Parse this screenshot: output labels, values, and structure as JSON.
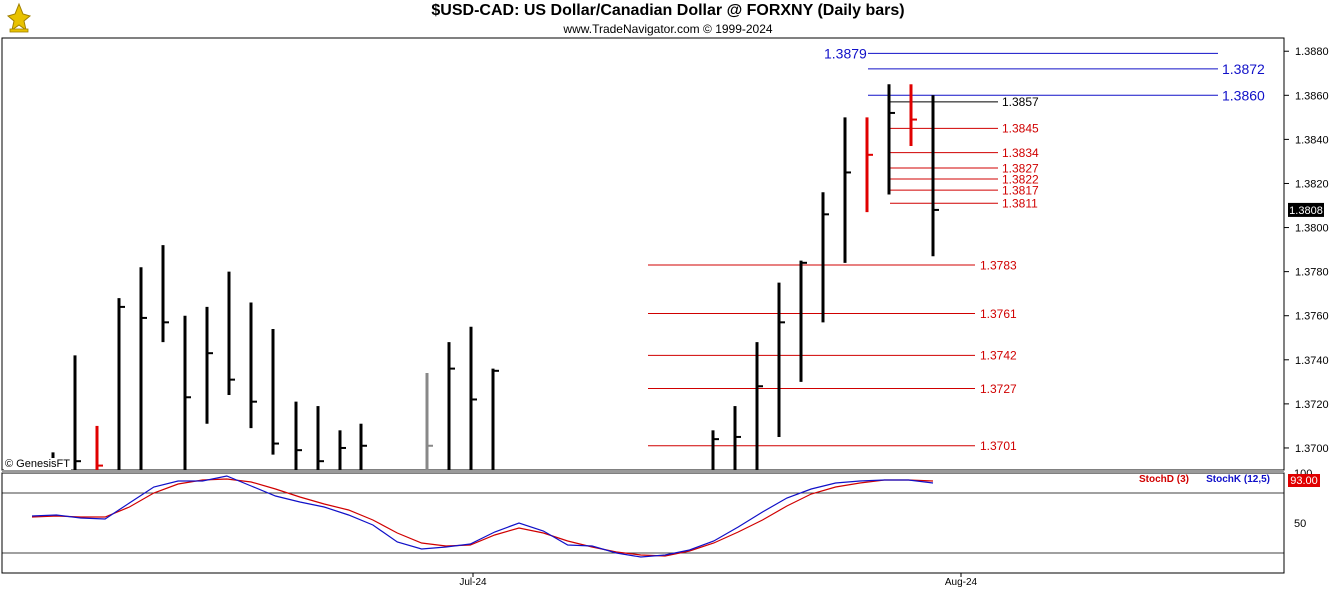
{
  "header": {
    "title": "$USD-CAD:  US Dollar/Canadian Dollar @ FORXNY  (Daily bars)",
    "subtitle": "www.TradeNavigator.com © 1999-2024"
  },
  "copyright": "© GenesisFT",
  "colors": {
    "bar": "#000000",
    "bar_highlight": "#e00000",
    "bar_gray": "#888888",
    "resistance": "#1010c8",
    "support": "#d00000",
    "stoch_d": "#d00000",
    "stoch_k": "#1010c8",
    "last_price_bg": "#000000",
    "stoch_value_bg": "#e00000"
  },
  "chart_data": [
    {
      "type": "ohlc",
      "name": "price",
      "ylim": [
        1.369,
        1.3886
      ],
      "y_ticks": [
        "1.3880",
        "1.3860",
        "1.3840",
        "1.3820",
        "1.3800",
        "1.3780",
        "1.3760",
        "1.3740",
        "1.3720",
        "1.3700"
      ],
      "x_ticks": [
        "Jul-24",
        "Aug-24"
      ],
      "last_price": "1.3808",
      "bars": [
        {
          "h": 1.3698,
          "l": 1.369,
          "c": 1.3694
        },
        {
          "h": 1.3742,
          "l": 1.369,
          "c": 1.3694
        },
        {
          "h": 1.371,
          "l": 1.369,
          "c": 1.3692,
          "color": "red"
        },
        {
          "h": 1.3768,
          "l": 1.369,
          "c": 1.3764
        },
        {
          "h": 1.3782,
          "l": 1.369,
          "c": 1.3759
        },
        {
          "h": 1.3792,
          "l": 1.3748,
          "c": 1.3757
        },
        {
          "h": 1.376,
          "l": 1.369,
          "c": 1.3723
        },
        {
          "h": 1.3764,
          "l": 1.3711,
          "c": 1.3743
        },
        {
          "h": 1.378,
          "l": 1.3724,
          "c": 1.3731
        },
        {
          "h": 1.3766,
          "l": 1.3709,
          "c": 1.3721
        },
        {
          "h": 1.3754,
          "l": 1.3697,
          "c": 1.3702
        },
        {
          "h": 1.3721,
          "l": 1.369,
          "c": 1.3699
        },
        {
          "h": 1.3719,
          "l": 1.369,
          "c": 1.3694
        },
        {
          "h": 1.3708,
          "l": 1.369,
          "c": 1.37
        },
        {
          "h": 1.3711,
          "l": 1.369,
          "c": 1.3701
        },
        {
          "h": 1.3734,
          "l": 1.369,
          "c": 1.3701,
          "color": "gray"
        },
        {
          "h": 1.3748,
          "l": 1.369,
          "c": 1.3736
        },
        {
          "h": 1.3755,
          "l": 1.369,
          "c": 1.3722
        },
        {
          "h": 1.3736,
          "l": 1.369,
          "c": 1.3735
        },
        {
          "h": 1.3708,
          "l": 1.369,
          "c": 1.3704
        },
        {
          "h": 1.3719,
          "l": 1.369,
          "c": 1.3705
        },
        {
          "h": 1.3748,
          "l": 1.369,
          "c": 1.3728
        },
        {
          "h": 1.3775,
          "l": 1.3705,
          "c": 1.3757
        },
        {
          "h": 1.3785,
          "l": 1.373,
          "c": 1.3784
        },
        {
          "h": 1.3816,
          "l": 1.3757,
          "c": 1.3806
        },
        {
          "h": 1.385,
          "l": 1.3784,
          "c": 1.3825
        },
        {
          "h": 1.385,
          "l": 1.3807,
          "c": 1.3833,
          "color": "red"
        },
        {
          "h": 1.3865,
          "l": 1.3815,
          "c": 1.3852
        },
        {
          "h": 1.3865,
          "l": 1.3837,
          "c": 1.3849,
          "color": "red"
        },
        {
          "h": 1.386,
          "l": 1.3787,
          "c": 1.3808
        }
      ],
      "levels": [
        {
          "value": 1.3879,
          "label": "1.3879",
          "kind": "resistance"
        },
        {
          "value": 1.3872,
          "label": "1.3872",
          "kind": "resistance"
        },
        {
          "value": 1.386,
          "label": "1.3860",
          "kind": "resistance"
        },
        {
          "value": 1.3857,
          "label": "1.3857",
          "kind": "pivot"
        },
        {
          "value": 1.3845,
          "label": "1.3845",
          "kind": "support"
        },
        {
          "value": 1.3834,
          "label": "1.3834",
          "kind": "support"
        },
        {
          "value": 1.3827,
          "label": "1.3827",
          "kind": "support"
        },
        {
          "value": 1.3822,
          "label": "1.3822",
          "kind": "support"
        },
        {
          "value": 1.3817,
          "label": "1.3817",
          "kind": "support"
        },
        {
          "value": 1.3811,
          "label": "1.3811",
          "kind": "support"
        },
        {
          "value": 1.3783,
          "label": "1.3783",
          "kind": "support"
        },
        {
          "value": 1.3761,
          "label": "1.3761",
          "kind": "support"
        },
        {
          "value": 1.3742,
          "label": "1.3742",
          "kind": "support"
        },
        {
          "value": 1.3727,
          "label": "1.3727",
          "kind": "support"
        },
        {
          "value": 1.3701,
          "label": "1.3701",
          "kind": "support"
        }
      ]
    },
    {
      "type": "line",
      "name": "stochastic",
      "ylim": [
        0,
        100
      ],
      "y_ticks": [
        "100",
        "50"
      ],
      "reference_lines": [
        80,
        20
      ],
      "current_value": "93.00",
      "legend": [
        "StochD (3)",
        "StochK (12,5)"
      ],
      "series": [
        {
          "name": "StochD (3)",
          "color": "red",
          "values": [
            56,
            57,
            56,
            56,
            66,
            80,
            89,
            93,
            94,
            91,
            84,
            76,
            69,
            63,
            53,
            40,
            30,
            27,
            28,
            38,
            45,
            40,
            32,
            26,
            21,
            18,
            17,
            22,
            30,
            41,
            53,
            67,
            79,
            86,
            90,
            93,
            93,
            92
          ]
        },
        {
          "name": "StochK (12,5)",
          "color": "blue",
          "values": [
            57,
            58,
            55,
            54,
            70,
            86,
            92,
            92,
            97,
            87,
            77,
            71,
            66,
            58,
            48,
            31,
            24,
            26,
            29,
            41,
            50,
            42,
            28,
            27,
            20,
            16,
            18,
            23,
            32,
            46,
            61,
            75,
            84,
            90,
            92,
            93,
            93,
            90
          ]
        }
      ]
    }
  ]
}
